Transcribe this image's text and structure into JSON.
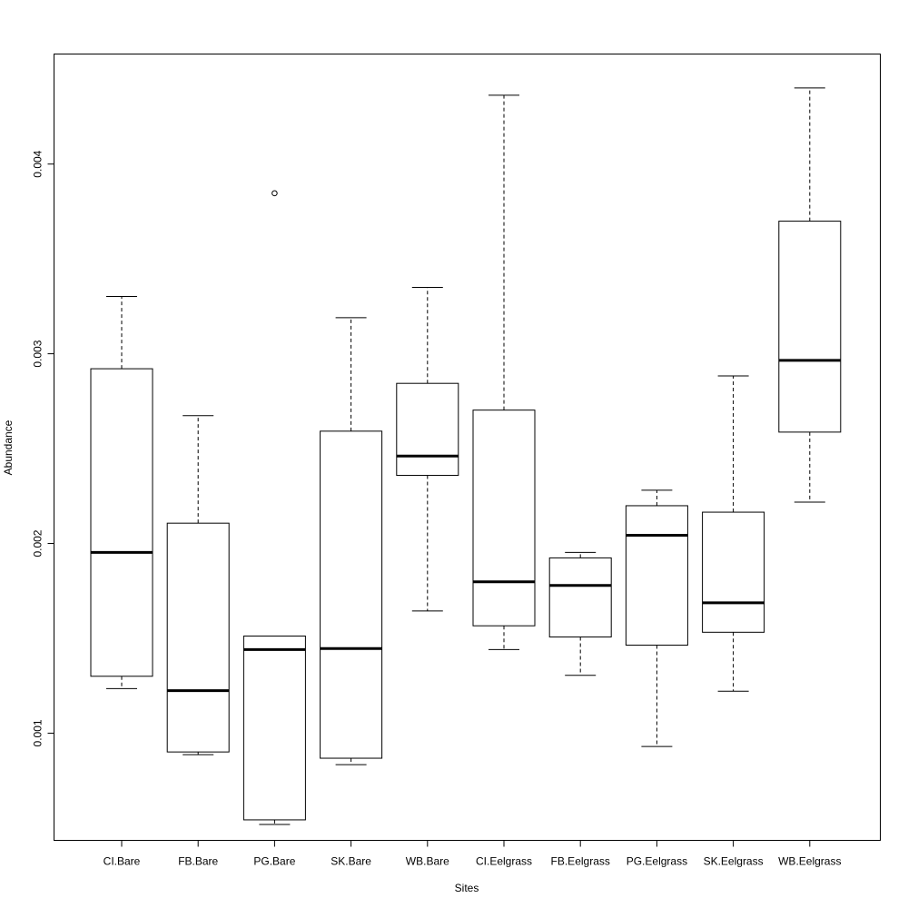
{
  "chart_data": {
    "type": "boxplot",
    "xlabel": "Sites",
    "ylabel": "Abundance",
    "ylim": [
      0.000435,
      0.00458
    ],
    "yticks": [
      0.001,
      0.002,
      0.003,
      0.004
    ],
    "ytick_labels": [
      "0.001",
      "0.002",
      "0.003",
      "0.004"
    ],
    "categories": [
      "CI.Bare",
      "FB.Bare",
      "PG.Bare",
      "SK.Bare",
      "WB.Bare",
      "CI.Eelgrass",
      "FB.Eelgrass",
      "PG.Eelgrass",
      "SK.Eelgrass",
      "WB.Eelgrass"
    ],
    "boxes": [
      {
        "name": "CI.Bare",
        "whisker_low": 0.001235,
        "q1": 0.0013,
        "median": 0.001953,
        "q3": 0.002921,
        "whisker_high": 0.003302,
        "outliers": []
      },
      {
        "name": "FB.Bare",
        "whisker_low": 0.000887,
        "q1": 0.000901,
        "median": 0.001224,
        "q3": 0.002107,
        "whisker_high": 0.002674,
        "outliers": []
      },
      {
        "name": "PG.Bare",
        "whisker_low": 0.000519,
        "q1": 0.000543,
        "median": 0.001441,
        "q3": 0.001512,
        "whisker_high": 0.001512,
        "outliers": [
          0.003846
        ]
      },
      {
        "name": "SK.Bare",
        "whisker_low": 0.000834,
        "q1": 0.000868,
        "median": 0.001446,
        "q3": 0.002592,
        "whisker_high": 0.00319,
        "outliers": []
      },
      {
        "name": "WB.Bare",
        "whisker_low": 0.001644,
        "q1": 0.002359,
        "median": 0.002461,
        "q3": 0.002844,
        "whisker_high": 0.00335,
        "outliers": []
      },
      {
        "name": "CI.Eelgrass",
        "whisker_low": 0.001441,
        "q1": 0.001566,
        "median": 0.001798,
        "q3": 0.002703,
        "whisker_high": 0.004363,
        "outliers": []
      },
      {
        "name": "FB.Eelgrass",
        "whisker_low": 0.001305,
        "q1": 0.001507,
        "median": 0.001779,
        "q3": 0.001924,
        "whisker_high": 0.001953,
        "outliers": []
      },
      {
        "name": "PG.Eelgrass",
        "whisker_low": 0.00093,
        "q1": 0.001464,
        "median": 0.002043,
        "q3": 0.002199,
        "whisker_high": 0.002281,
        "outliers": []
      },
      {
        "name": "SK.Eelgrass",
        "whisker_low": 0.001221,
        "q1": 0.001532,
        "median": 0.001687,
        "q3": 0.002165,
        "whisker_high": 0.002883,
        "outliers": []
      },
      {
        "name": "WB.Eelgrass",
        "whisker_low": 0.002218,
        "q1": 0.002587,
        "median": 0.002965,
        "q3": 0.003699,
        "whisker_high": 0.004401,
        "outliers": []
      }
    ]
  }
}
